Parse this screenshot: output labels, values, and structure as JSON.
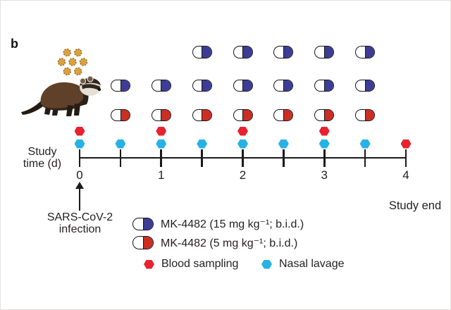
{
  "panel_label": "b",
  "colors": {
    "axis": "#1a1a1a",
    "text": "#231f20",
    "pill_blue": "#3c3d96",
    "pill_red": "#cb2e22",
    "blood": "#e8212e",
    "lavage": "#27b2e6",
    "virus_fill": "#dba13f",
    "virus_stroke": "#9a6c25"
  },
  "timeline": {
    "axis_label_line1": "Study",
    "axis_label_line2": "time (d)",
    "tick_days": [
      0,
      0.5,
      1,
      1.5,
      2,
      2.5,
      3,
      3.5,
      4
    ],
    "major_ticks": [
      {
        "day": 0,
        "label": "0"
      },
      {
        "day": 1,
        "label": "1"
      },
      {
        "day": 2,
        "label": "2"
      },
      {
        "day": 3,
        "label": "3"
      },
      {
        "day": 4,
        "label": "4"
      }
    ],
    "infection_label_line1": "SARS-CoV-2",
    "infection_label_line2": "infection",
    "end_label": "Study end"
  },
  "dosing": {
    "rows": [
      {
        "pill": "blue",
        "days": [
          1.5,
          2,
          2.5,
          3,
          3.5
        ]
      },
      {
        "pill": "blue",
        "days": [
          0.5,
          1,
          1.5,
          2,
          2.5,
          3,
          3.5
        ]
      },
      {
        "pill": "red",
        "days": [
          0.5,
          1,
          1.5,
          2,
          2.5,
          3,
          3.5
        ]
      }
    ]
  },
  "sampling": {
    "blood_days": [
      0,
      1,
      2,
      3,
      4
    ],
    "lavage_days": [
      0,
      0.5,
      1,
      1.5,
      2,
      2.5,
      3,
      3.5
    ]
  },
  "legend": {
    "pill_items": [
      {
        "pill": "blue",
        "label": "MK-4482 (15 mg kg⁻¹; b.i.d.)"
      },
      {
        "pill": "red",
        "label": "MK-4482 (5 mg kg⁻¹; b.i.d.)"
      }
    ],
    "marker_items": [
      {
        "marker": "blood",
        "label": "Blood sampling"
      },
      {
        "marker": "lavage",
        "label": "Nasal lavage"
      }
    ]
  }
}
